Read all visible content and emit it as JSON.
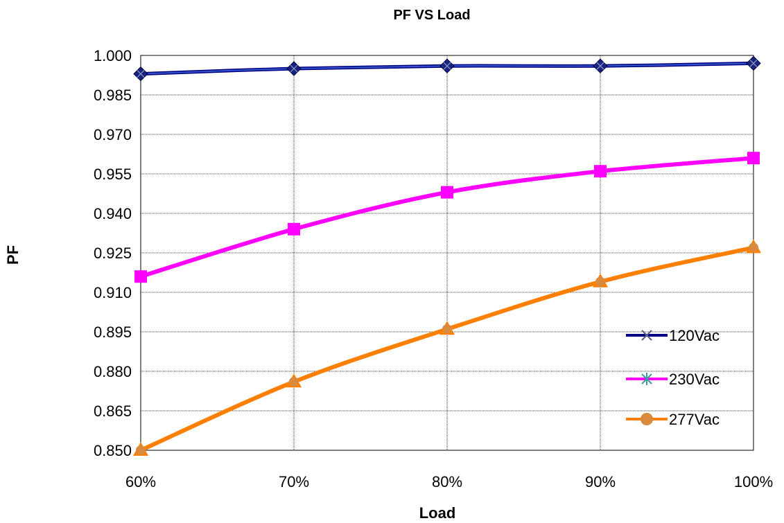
{
  "chart_data": {
    "type": "line",
    "title": "PF VS Load",
    "xlabel": "Load",
    "ylabel": "PF",
    "categories": [
      "60%",
      "70%",
      "80%",
      "90%",
      "100%"
    ],
    "ylim": [
      0.85,
      1.0
    ],
    "yticks": [
      "0.850",
      "0.865",
      "0.880",
      "0.895",
      "0.910",
      "0.925",
      "0.940",
      "0.955",
      "0.970",
      "0.985",
      "1.000"
    ],
    "grid": true,
    "legend_position": "right",
    "series": [
      {
        "name": "120Vac",
        "color": "#000080",
        "marker_color": "#1a237e",
        "legend_marker": "x-cross",
        "values": [
          0.993,
          0.995,
          0.996,
          0.996,
          0.997
        ]
      },
      {
        "name": "230Vac",
        "color": "#ff00ff",
        "marker_color": "#ff00ff",
        "legend_marker": "asterisk",
        "values": [
          0.916,
          0.934,
          0.948,
          0.956,
          0.961
        ]
      },
      {
        "name": "277Vac",
        "color": "#ff7f00",
        "marker_color": "#ff7f00",
        "legend_marker": "circle",
        "values": [
          0.85,
          0.876,
          0.896,
          0.914,
          0.927
        ]
      }
    ]
  }
}
